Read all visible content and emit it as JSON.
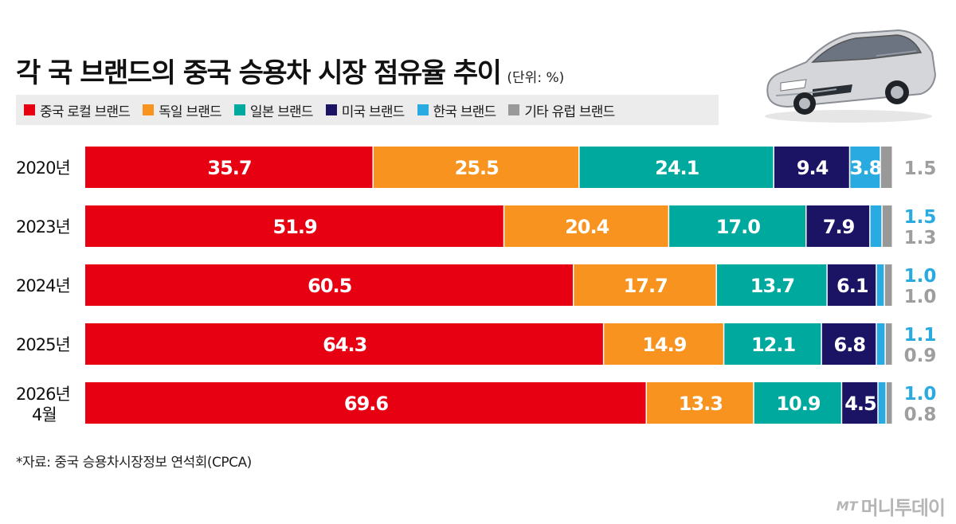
{
  "title": "각 국 브랜드의 중국 승용차 시장 점유율 추이",
  "unit": "(단위: %)",
  "legend": [
    {
      "label": "중국 로컬 브랜드",
      "color": "#e60012"
    },
    {
      "label": "독일 브랜드",
      "color": "#f7931e"
    },
    {
      "label": "일본 브랜드",
      "color": "#00a99d"
    },
    {
      "label": "미국 브랜드",
      "color": "#1b1464"
    },
    {
      "label": "한국 브랜드",
      "color": "#29abe2"
    },
    {
      "label": "기타 유럽 브랜드",
      "color": "#999999"
    }
  ],
  "source": "*자료: 중국 승용차시장정보 연석회(CPCA)",
  "logo": {
    "mark": "MT",
    "text": "머니투데이"
  },
  "car_icon": "car-illustration",
  "chart_data": {
    "type": "bar",
    "orientation": "horizontal",
    "stacked": true,
    "categories": [
      "2020년",
      "2023년",
      "2024년",
      "2025년",
      "2026년 4월"
    ],
    "series": [
      {
        "name": "중국 로컬 브랜드",
        "color": "#e60012",
        "values": [
          35.7,
          51.9,
          60.5,
          64.3,
          69.6
        ],
        "labels": [
          "35.7",
          "51.9",
          "60.5",
          "64.3",
          "69.6"
        ]
      },
      {
        "name": "독일 브랜드",
        "color": "#f7931e",
        "values": [
          25.5,
          20.4,
          17.7,
          14.9,
          13.3
        ],
        "labels": [
          "25.5",
          "20.4",
          "17.7",
          "14.9",
          "13.3"
        ]
      },
      {
        "name": "일본 브랜드",
        "color": "#00a99d",
        "values": [
          24.1,
          17.0,
          13.7,
          12.1,
          10.9
        ],
        "labels": [
          "24.1",
          "17.0",
          "13.7",
          "12.1",
          "10.9"
        ]
      },
      {
        "name": "미국 브랜드",
        "color": "#1b1464",
        "values": [
          9.4,
          7.9,
          6.1,
          6.8,
          4.5
        ],
        "labels": [
          "9.4",
          "7.9",
          "6.1",
          "6.8",
          "4.5"
        ]
      },
      {
        "name": "한국 브랜드",
        "color": "#29abe2",
        "values": [
          3.8,
          1.5,
          1.0,
          1.1,
          1.0
        ],
        "labels": [
          "3.8",
          "1.5",
          "1.0",
          "1.1",
          "1.0"
        ]
      },
      {
        "name": "기타 유럽 브랜드",
        "color": "#999999",
        "values": [
          1.5,
          1.3,
          1.0,
          0.9,
          0.8
        ],
        "labels": [
          "1.5",
          "1.3",
          "1.0",
          "0.9",
          "0.8"
        ]
      }
    ],
    "xlim": [
      0,
      100
    ]
  }
}
